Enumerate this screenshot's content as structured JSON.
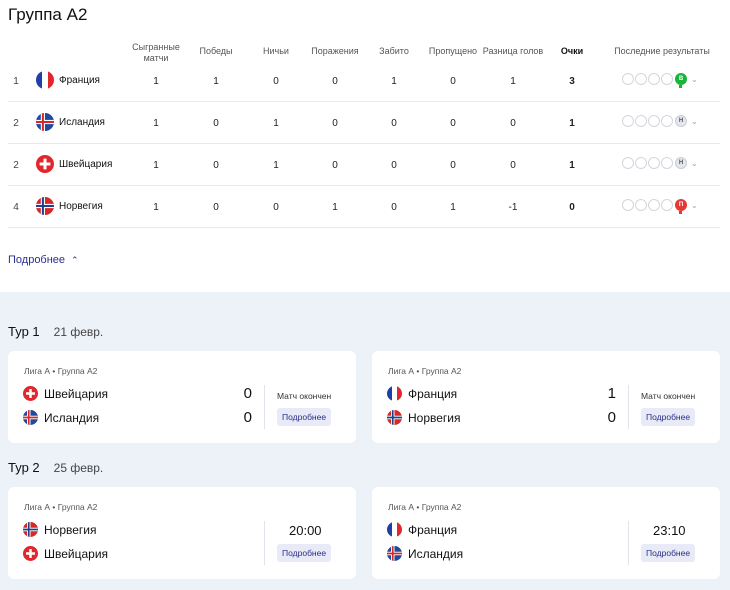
{
  "group_title": "Группа А2",
  "headers": {
    "played": "Сыгранные матчи",
    "wins": "Победы",
    "draws": "Ничьи",
    "losses": "Поражения",
    "scored": "Забито",
    "conceded": "Пропущено",
    "diff": "Разница голов",
    "points": "Очки",
    "form": "Последние результаты"
  },
  "standings": [
    {
      "pos": "1",
      "team": "Франция",
      "flag": "france",
      "played": "1",
      "wins": "1",
      "draws": "0",
      "losses": "0",
      "scored": "1",
      "conceded": "0",
      "diff": "1",
      "points": "3",
      "last": "В",
      "last_kind": "w"
    },
    {
      "pos": "2",
      "team": "Исландия",
      "flag": "iceland",
      "played": "1",
      "wins": "0",
      "draws": "1",
      "losses": "0",
      "scored": "0",
      "conceded": "0",
      "diff": "0",
      "points": "1",
      "last": "Н",
      "last_kind": "d"
    },
    {
      "pos": "2",
      "team": "Швейцария",
      "flag": "switzerland",
      "played": "1",
      "wins": "0",
      "draws": "1",
      "losses": "0",
      "scored": "0",
      "conceded": "0",
      "diff": "0",
      "points": "1",
      "last": "Н",
      "last_kind": "d"
    },
    {
      "pos": "4",
      "team": "Норвегия",
      "flag": "norway",
      "played": "1",
      "wins": "0",
      "draws": "0",
      "losses": "1",
      "scored": "0",
      "conceded": "1",
      "diff": "-1",
      "points": "0",
      "last": "П",
      "last_kind": "l"
    }
  ],
  "more_label": "Подробнее",
  "rounds": [
    {
      "title": "Тур 1",
      "date": "21 февр.",
      "matches": [
        {
          "league": "Лига А",
          "group": "Группа А2",
          "home": "Швейцария",
          "home_flag": "switzerland",
          "away": "Исландия",
          "away_flag": "iceland",
          "home_score": "0",
          "away_score": "0",
          "status": "Матч окончен",
          "time": "",
          "more": "Подробнее"
        },
        {
          "league": "Лига А",
          "group": "Группа А2",
          "home": "Франция",
          "home_flag": "france",
          "away": "Норвегия",
          "away_flag": "norway",
          "home_score": "1",
          "away_score": "0",
          "status": "Матч окончен",
          "time": "",
          "more": "Подробнее"
        }
      ]
    },
    {
      "title": "Тур 2",
      "date": "25 февр.",
      "matches": [
        {
          "league": "Лига А",
          "group": "Группа А2",
          "home": "Норвегия",
          "home_flag": "norway",
          "away": "Швейцария",
          "away_flag": "switzerland",
          "home_score": "",
          "away_score": "",
          "status": "",
          "time": "20:00",
          "more": "Подробнее"
        },
        {
          "league": "Лига А",
          "group": "Группа А2",
          "home": "Франция",
          "home_flag": "france",
          "away": "Исландия",
          "away_flag": "iceland",
          "home_score": "",
          "away_score": "",
          "status": "",
          "time": "23:10",
          "more": "Подробнее"
        }
      ]
    }
  ],
  "colors": {
    "accent": "#2b2f8f",
    "win": "#18b53a",
    "loss": "#e53935",
    "bottom_bg": "#edf1f8"
  }
}
